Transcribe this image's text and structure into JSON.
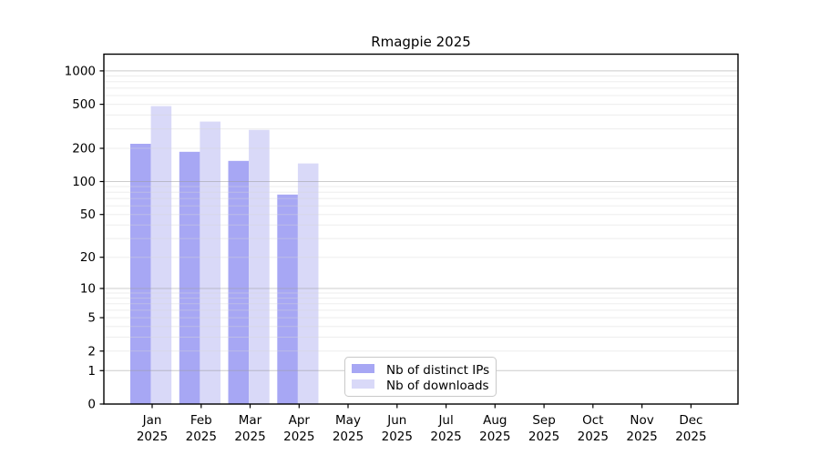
{
  "chart_data": {
    "type": "bar",
    "title": "Rmagpie 2025",
    "year_label": "2025",
    "categories": [
      "Jan",
      "Feb",
      "Mar",
      "Apr",
      "May",
      "Jun",
      "Jul",
      "Aug",
      "Sep",
      "Oct",
      "Nov",
      "Dec"
    ],
    "series": [
      {
        "name": "Nb of distinct IPs",
        "color": "#a7a7f4",
        "values": [
          220,
          186,
          154,
          76,
          null,
          null,
          null,
          null,
          null,
          null,
          null,
          null
        ]
      },
      {
        "name": "Nb of downloads",
        "color": "#d9d9f8",
        "values": [
          482,
          349,
          294,
          146,
          null,
          null,
          null,
          null,
          null,
          null,
          null,
          null
        ]
      }
    ],
    "yscale": "log1p",
    "yticks": [
      0,
      1,
      2,
      5,
      10,
      20,
      50,
      100,
      200,
      500,
      1000
    ],
    "ylim": [
      0,
      1050
    ],
    "grid": "horizontal",
    "grid_major_at": [
      1,
      10,
      100,
      1000
    ],
    "grid_minor_at": [
      2,
      3,
      4,
      5,
      6,
      7,
      8,
      9,
      20,
      30,
      40,
      50,
      60,
      70,
      80,
      90,
      200,
      300,
      400,
      500,
      600,
      700,
      800,
      900
    ],
    "legend_position": "lower-center",
    "colors": {
      "axis": "#000000",
      "grid_major": "#999999",
      "grid_minor": "#d8d8d8",
      "background": "#ffffff"
    }
  }
}
